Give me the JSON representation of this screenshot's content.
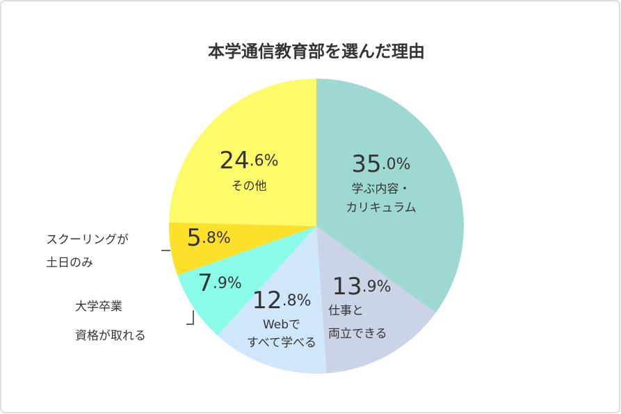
{
  "chart_data": {
    "type": "pie",
    "title": "本学通信教育部を選んだ理由",
    "categories": [
      "学ぶ内容・\nカリキュラム",
      "仕事と\n両立できる",
      "Webで\nすべて学べる",
      "大学卒業\n資格が取れる",
      "スクーリングが\n土日のみ",
      "その他"
    ],
    "values": [
      35.0,
      13.9,
      12.8,
      7.9,
      5.8,
      24.6
    ],
    "value_labels": [
      "35.0%",
      "13.9%",
      "12.8%",
      "7.9%",
      "5.8%",
      "24.6%"
    ],
    "colors": [
      "#9dd9d2",
      "#cbd3e6",
      "#cfe6fb",
      "#8afbe8",
      "#fde02a",
      "#fdfb6a"
    ]
  }
}
